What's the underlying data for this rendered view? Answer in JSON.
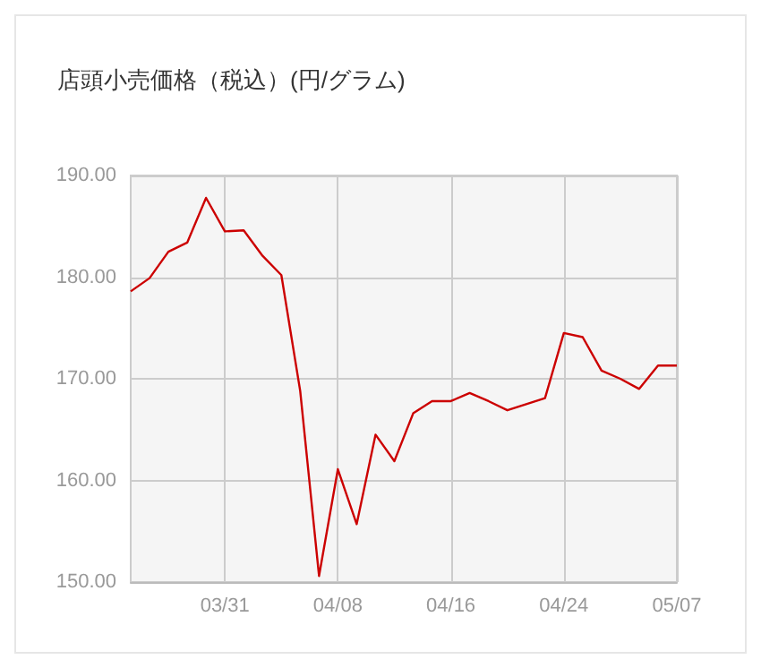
{
  "chart_data": {
    "type": "line",
    "title": "店頭小売価格（税込）(円/グラム)",
    "categories": [
      null,
      null,
      null,
      null,
      null,
      "03/31",
      null,
      null,
      null,
      null,
      null,
      "04/08",
      null,
      null,
      null,
      null,
      null,
      "04/16",
      null,
      null,
      null,
      null,
      null,
      "04/24",
      null,
      null,
      null,
      null,
      null,
      "05/07"
    ],
    "series": [
      {
        "color": "#cc0000",
        "values": [
          178.6,
          179.9,
          182.5,
          183.4,
          187.8,
          184.5,
          184.6,
          182.1,
          180.2,
          168.8,
          150.6,
          161.1,
          155.7,
          164.5,
          161.9,
          166.6,
          167.8,
          167.8,
          168.6,
          167.8,
          166.9,
          167.5,
          168.1,
          174.5,
          174.1,
          170.8,
          170.0,
          169.0,
          171.3,
          171.3
        ]
      }
    ],
    "ylim": [
      150,
      190
    ],
    "yticks": [
      {
        "value": 150,
        "label": "150.00"
      },
      {
        "value": 160,
        "label": "160.00"
      },
      {
        "value": 170,
        "label": "170.00"
      },
      {
        "value": 180,
        "label": "180.00"
      },
      {
        "value": 190,
        "label": "190.00"
      }
    ],
    "grid": true,
    "marker": "none",
    "line_style": "solid"
  }
}
